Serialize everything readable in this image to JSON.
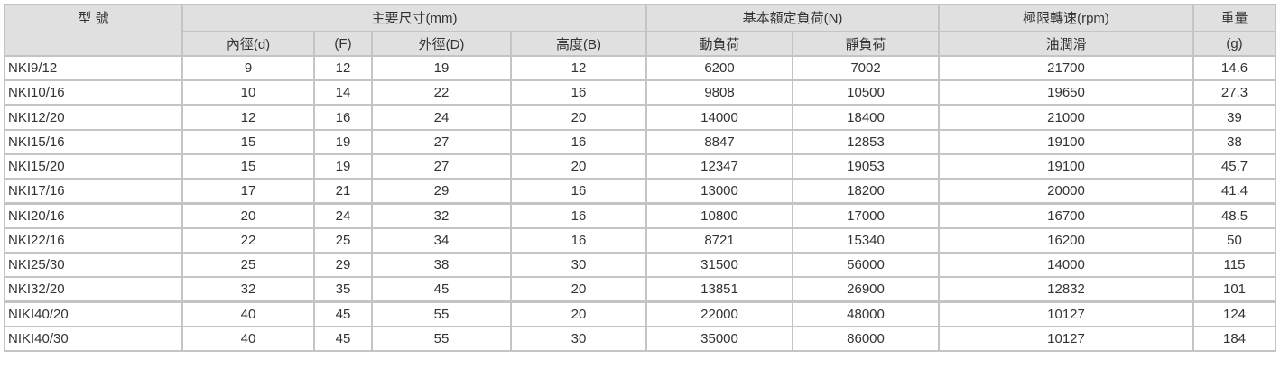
{
  "header": {
    "model": "型 號",
    "group_dims": "主要尺寸(mm)",
    "group_load": "基本額定負荷(N)",
    "group_speed": "極限轉速(rpm)",
    "group_weight": "重量",
    "sub": [
      "內徑(d)",
      "(F)",
      "外徑(D)",
      "高度(B)",
      "動負荷",
      "靜負荷",
      "油潤滑",
      "(g)"
    ]
  },
  "rows": [
    [
      "NKI9/12",
      "9",
      "12",
      "19",
      "12",
      "6200",
      "7002",
      "21700",
      "14.6"
    ],
    [
      "NKI10/16",
      "10",
      "14",
      "22",
      "16",
      "9808",
      "10500",
      "19650",
      "27.3"
    ],
    [
      "NKI12/20",
      "12",
      "16",
      "24",
      "20",
      "14000",
      "18400",
      "21000",
      "39"
    ],
    [
      "NKI15/16",
      "15",
      "19",
      "27",
      "16",
      "8847",
      "12853",
      "19100",
      "38"
    ],
    [
      "NKI15/20",
      "15",
      "19",
      "27",
      "20",
      "12347",
      "19053",
      "19100",
      "45.7"
    ],
    [
      "NKI17/16",
      "17",
      "21",
      "29",
      "16",
      "13000",
      "18200",
      "20000",
      "41.4"
    ],
    [
      "NKI20/16",
      "20",
      "24",
      "32",
      "16",
      "10800",
      "17000",
      "16700",
      "48.5"
    ],
    [
      "NKI22/16",
      "22",
      "25",
      "34",
      "16",
      "8721",
      "15340",
      "16200",
      "50"
    ],
    [
      "NKI25/30",
      "25",
      "29",
      "38",
      "30",
      "31500",
      "56000",
      "14000",
      "115"
    ],
    [
      "NKI32/20",
      "32",
      "35",
      "45",
      "20",
      "13851",
      "26900",
      "12832",
      "101"
    ],
    [
      "NIKI40/20",
      "40",
      "45",
      "55",
      "20",
      "22000",
      "48000",
      "10127",
      "124"
    ],
    [
      "NIKI40/30",
      "40",
      "45",
      "55",
      "30",
      "35000",
      "86000",
      "10127",
      "184"
    ]
  ]
}
